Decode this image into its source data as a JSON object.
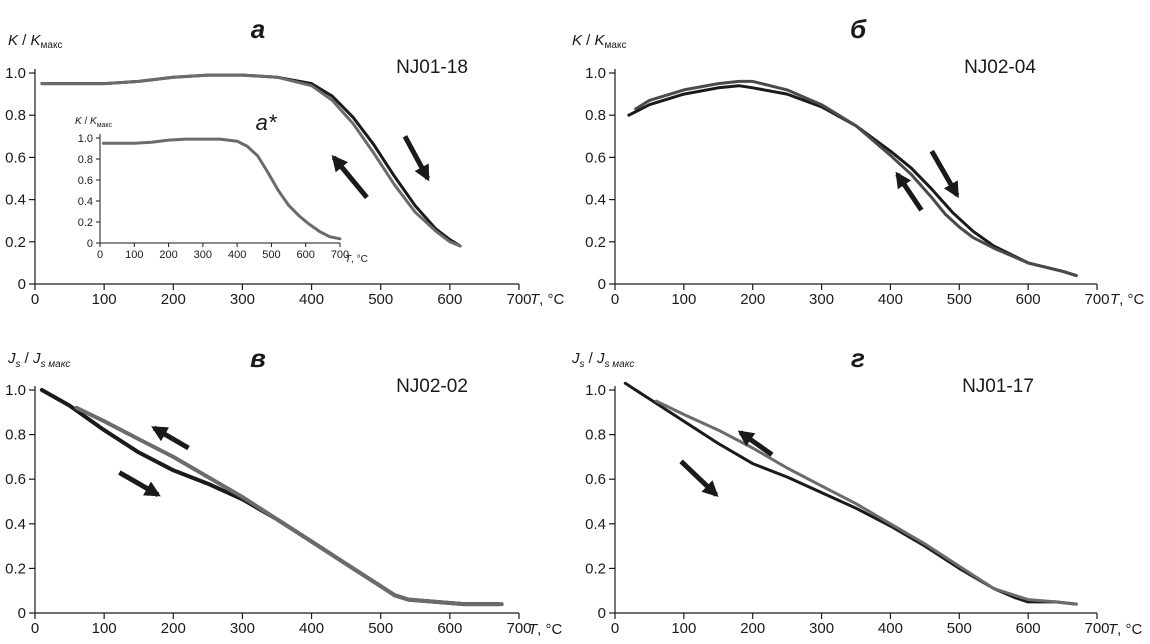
{
  "chart_data": [
    {
      "type": "line",
      "panel": "а",
      "sample": "NJ01-18",
      "ylabel_var": "K",
      "ylabel_sub": "макс",
      "xlabel_var": "T",
      "xlabel_unit": "°C",
      "xlim": [
        0,
        700
      ],
      "ylim": [
        0,
        1.0
      ],
      "xticks": [
        "0",
        "100",
        "200",
        "300",
        "400",
        "500",
        "600",
        "700"
      ],
      "yticks": [
        "0",
        "0.2",
        "0.4",
        "0.6",
        "0.8",
        "1.0"
      ],
      "series": [
        {
          "color": "#1a1a1a",
          "x": [
            10,
            50,
            100,
            150,
            200,
            250,
            300,
            350,
            400,
            430,
            460,
            490,
            520,
            550,
            580,
            600,
            615
          ],
          "y": [
            0.95,
            0.95,
            0.95,
            0.96,
            0.98,
            0.99,
            0.99,
            0.98,
            0.95,
            0.89,
            0.79,
            0.66,
            0.51,
            0.37,
            0.26,
            0.21,
            0.18
          ]
        },
        {
          "color": "#6b6b6b",
          "x": [
            615,
            600,
            580,
            550,
            520,
            490,
            460,
            430,
            400,
            350,
            300,
            250,
            200,
            150,
            100,
            50,
            10
          ],
          "y": [
            0.18,
            0.2,
            0.25,
            0.34,
            0.47,
            0.62,
            0.76,
            0.87,
            0.94,
            0.98,
            0.99,
            0.99,
            0.98,
            0.96,
            0.95,
            0.95,
            0.95
          ]
        }
      ],
      "arrows": [
        {
          "x1": 480,
          "y1": 0.41,
          "x2": 432,
          "y2": 0.6
        },
        {
          "x1": 535,
          "y1": 0.7,
          "x2": 568,
          "y2": 0.5
        }
      ],
      "inset": {
        "label": "а*",
        "ylabel_var": "K",
        "ylabel_sub": "макс",
        "xlabel_var": "T",
        "xlabel_unit": "°C",
        "xlim": [
          0,
          700
        ],
        "ylim": [
          0,
          1.0
        ],
        "xticks": [
          "0",
          "100",
          "200",
          "300",
          "400",
          "500",
          "600",
          "700"
        ],
        "yticks": [
          "0",
          "0.2",
          "0.4",
          "0.6",
          "0.8",
          "1.0"
        ],
        "series": [
          {
            "color": "#6b6b6b",
            "x": [
              10,
              50,
              100,
              150,
              200,
              250,
              300,
              350,
              400,
              430,
              460,
              490,
              520,
              550,
              580,
              610,
              640,
              670,
              700
            ],
            "y": [
              0.95,
              0.95,
              0.95,
              0.96,
              0.98,
              0.99,
              0.99,
              0.99,
              0.97,
              0.92,
              0.83,
              0.67,
              0.5,
              0.36,
              0.26,
              0.18,
              0.11,
              0.06,
              0.04
            ]
          }
        ]
      }
    },
    {
      "type": "line",
      "panel": "б",
      "sample": "NJ02-04",
      "ylabel_var": "K",
      "ylabel_sub": "макс",
      "xlabel_var": "T",
      "xlabel_unit": "°C",
      "xlim": [
        0,
        700
      ],
      "ylim": [
        0,
        1.0
      ],
      "xticks": [
        "0",
        "100",
        "200",
        "300",
        "400",
        "500",
        "600",
        "700"
      ],
      "yticks": [
        "0",
        "0.2",
        "0.4",
        "0.6",
        "0.8",
        "1.0"
      ],
      "series": [
        {
          "color": "#1a1a1a",
          "x": [
            20,
            50,
            100,
            150,
            180,
            200,
            250,
            300,
            350,
            400,
            430,
            460,
            490,
            520,
            550,
            600,
            650,
            670
          ],
          "y": [
            0.8,
            0.85,
            0.9,
            0.93,
            0.94,
            0.93,
            0.9,
            0.84,
            0.75,
            0.63,
            0.55,
            0.45,
            0.34,
            0.25,
            0.18,
            0.1,
            0.06,
            0.04
          ]
        },
        {
          "color": "#4a4a4a",
          "x": [
            670,
            650,
            600,
            550,
            520,
            500,
            480,
            460,
            430,
            400,
            350,
            300,
            250,
            200,
            180,
            150,
            100,
            50,
            30
          ],
          "y": [
            0.04,
            0.06,
            0.1,
            0.17,
            0.22,
            0.27,
            0.33,
            0.41,
            0.52,
            0.61,
            0.75,
            0.85,
            0.92,
            0.96,
            0.96,
            0.95,
            0.92,
            0.87,
            0.83
          ]
        }
      ],
      "arrows": [
        {
          "x1": 445,
          "y1": 0.35,
          "x2": 410,
          "y2": 0.52
        },
        {
          "x1": 460,
          "y1": 0.63,
          "x2": 497,
          "y2": 0.42
        }
      ]
    },
    {
      "type": "line",
      "panel": "в",
      "sample": "NJ02-02",
      "ylabel_var": "J",
      "ylabel_sub": "s",
      "ylabel_sub_max": "s макс",
      "xlabel_var": "T",
      "xlabel_unit": "°C",
      "xlim": [
        0,
        700
      ],
      "ylim": [
        0,
        1.0
      ],
      "xticks": [
        "0",
        "100",
        "200",
        "300",
        "400",
        "500",
        "600",
        "700"
      ],
      "yticks": [
        "0",
        "0.2",
        "0.4",
        "0.6",
        "0.8",
        "1.0"
      ],
      "series": [
        {
          "color": "#1a1a1a",
          "x": [
            10,
            50,
            100,
            150,
            200,
            250,
            300,
            350,
            400,
            450,
            500,
            520,
            540,
            580,
            620,
            670
          ],
          "y": [
            1.0,
            0.93,
            0.82,
            0.72,
            0.64,
            0.58,
            0.51,
            0.42,
            0.32,
            0.22,
            0.12,
            0.08,
            0.06,
            0.05,
            0.04,
            0.04
          ]
        },
        {
          "color": "#6b6b6b",
          "x": [
            675,
            620,
            580,
            540,
            520,
            500,
            450,
            400,
            350,
            300,
            250,
            200,
            150,
            100,
            60
          ],
          "y": [
            0.04,
            0.04,
            0.05,
            0.06,
            0.08,
            0.12,
            0.22,
            0.32,
            0.42,
            0.52,
            0.61,
            0.7,
            0.78,
            0.86,
            0.92
          ]
        }
      ],
      "arrows": [
        {
          "x1": 222,
          "y1": 0.74,
          "x2": 172,
          "y2": 0.83
        },
        {
          "x1": 122,
          "y1": 0.63,
          "x2": 178,
          "y2": 0.53
        }
      ]
    },
    {
      "type": "line",
      "panel": "г",
      "sample": "NJ01-17",
      "ylabel_var": "J",
      "ylabel_sub": "s",
      "ylabel_sub_max": "s макс",
      "xlabel_var": "T",
      "xlabel_unit": "°C",
      "xlim": [
        0,
        700
      ],
      "ylim": [
        0,
        1.0
      ],
      "xticks": [
        "0",
        "100",
        "200",
        "300",
        "400",
        "500",
        "600",
        "700"
      ],
      "yticks": [
        "0",
        "0.2",
        "0.4",
        "0.6",
        "0.8",
        "1.0"
      ],
      "series": [
        {
          "color": "#1a1a1a",
          "x": [
            15,
            50,
            100,
            150,
            200,
            250,
            300,
            350,
            400,
            450,
            500,
            550,
            580,
            600,
            620,
            640,
            670
          ],
          "y": [
            1.03,
            0.96,
            0.86,
            0.76,
            0.67,
            0.61,
            0.54,
            0.47,
            0.39,
            0.3,
            0.2,
            0.11,
            0.07,
            0.05,
            0.05,
            0.05,
            0.04
          ]
        },
        {
          "color": "#6b6b6b",
          "x": [
            670,
            640,
            600,
            550,
            500,
            450,
            400,
            350,
            300,
            250,
            200,
            150,
            100,
            60
          ],
          "y": [
            0.04,
            0.05,
            0.06,
            0.11,
            0.21,
            0.31,
            0.4,
            0.49,
            0.57,
            0.65,
            0.74,
            0.82,
            0.89,
            0.95
          ]
        }
      ],
      "arrows": [
        {
          "x1": 228,
          "y1": 0.71,
          "x2": 182,
          "y2": 0.81
        },
        {
          "x1": 96,
          "y1": 0.68,
          "x2": 147,
          "y2": 0.53
        }
      ]
    }
  ]
}
